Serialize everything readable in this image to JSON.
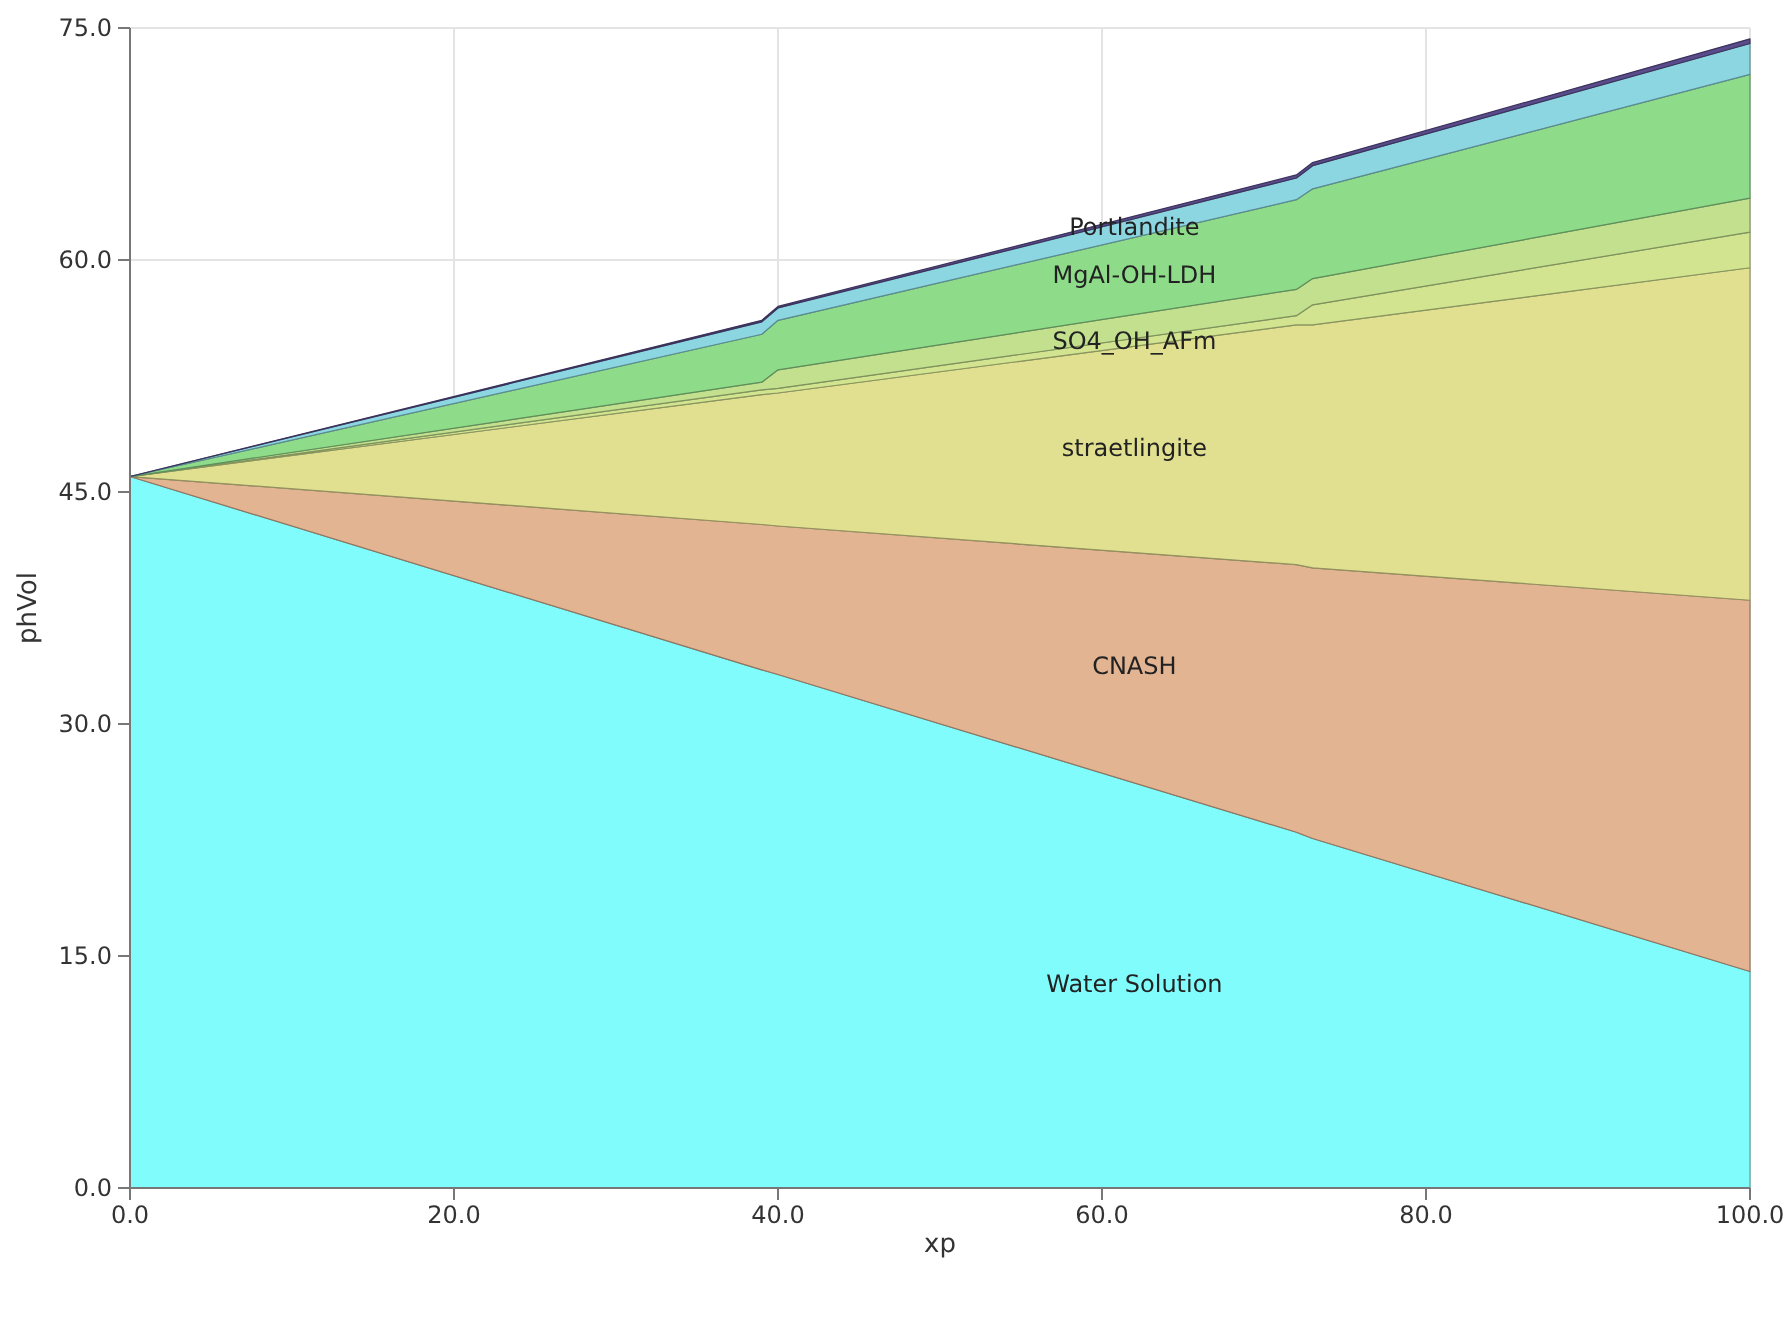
{
  "chart_data": {
    "type": "area",
    "stacked": true,
    "xlabel": "xp",
    "ylabel": "phVol",
    "x": [
      0,
      39,
      40,
      72,
      73,
      100
    ],
    "xlim": [
      0,
      100
    ],
    "ylim": [
      0,
      75
    ],
    "xticks": [
      {
        "value": 0,
        "label": "0.0"
      },
      {
        "value": 20,
        "label": "20.0"
      },
      {
        "value": 40,
        "label": "40.0"
      },
      {
        "value": 60,
        "label": "60.0"
      },
      {
        "value": 80,
        "label": "80.0"
      },
      {
        "value": 100,
        "label": "100.0"
      }
    ],
    "yticks": [
      {
        "value": 0,
        "label": "0.0"
      },
      {
        "value": 15,
        "label": "15.0"
      },
      {
        "value": 30,
        "label": "30.0"
      },
      {
        "value": 45,
        "label": "45.0"
      },
      {
        "value": 60,
        "label": "60.0"
      },
      {
        "value": 75,
        "label": "75.0"
      }
    ],
    "grid": true,
    "series": [
      {
        "name": "Water Solution",
        "color": "#80fcfc",
        "values": [
          46,
          33.5,
          33.2,
          23,
          22.6,
          14
        ]
      },
      {
        "name": "CNASH",
        "color": "#e2b492",
        "values": [
          0,
          9.4,
          9.6,
          17.3,
          17.5,
          24
        ]
      },
      {
        "name": "straetlingite",
        "color": "#e0e090",
        "values": [
          0,
          8.4,
          8.6,
          15.5,
          15.7,
          21.5
        ]
      },
      {
        "name": "SO4_OH_AFm",
        "color": "#d2e490",
        "values": [
          0,
          0.3,
          0.3,
          0.6,
          1.3,
          2.3
        ]
      },
      {
        "color": "#c2e08e",
        "values": [
          0,
          0.5,
          1.2,
          1.7,
          1.7,
          2.2
        ]
      },
      {
        "name": "MgAl-OH-LDH",
        "color": "#8edc8a",
        "values": [
          0,
          3.1,
          3.2,
          5.8,
          5.8,
          8
        ]
      },
      {
        "name": "Portlandite",
        "color": "#8cd6e2",
        "values": [
          0,
          0.8,
          0.8,
          1.4,
          1.5,
          2
        ]
      },
      {
        "color": "#5a4c8c",
        "values": [
          0,
          0.1,
          0.1,
          0.2,
          0.2,
          0.3
        ]
      }
    ]
  }
}
